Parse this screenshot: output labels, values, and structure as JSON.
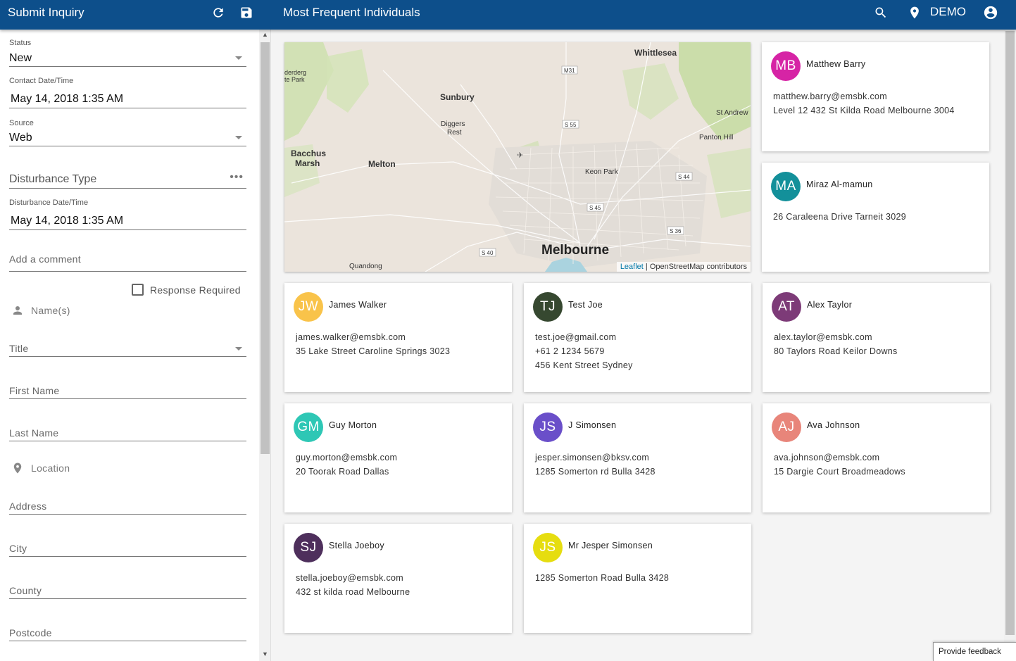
{
  "topbar": {
    "left_title": "Submit Inquiry",
    "right_title": "Most Frequent Individuals",
    "user_label": "DEMO"
  },
  "form": {
    "status": {
      "label": "Status",
      "value": "New"
    },
    "contact_datetime": {
      "label": "Contact Date/Time",
      "value": "May 14, 2018 1:35 AM"
    },
    "source": {
      "label": "Source",
      "value": "Web"
    },
    "disturbance_type": {
      "placeholder": "Disturbance Type"
    },
    "disturbance_datetime": {
      "label": "Disturbance Date/Time",
      "value": "May 14, 2018 1:35 AM"
    },
    "comment": {
      "placeholder": "Add a comment"
    },
    "response_required": {
      "label": "Response Required",
      "checked": false
    },
    "names_section": "Name(s)",
    "title": {
      "placeholder": "Title"
    },
    "first_name": {
      "placeholder": "First Name"
    },
    "last_name": {
      "placeholder": "Last Name"
    },
    "location_section": "Location",
    "address": {
      "placeholder": "Address"
    },
    "city": {
      "placeholder": "City"
    },
    "county": {
      "placeholder": "County"
    },
    "postcode": {
      "placeholder": "Postcode"
    }
  },
  "map": {
    "places": {
      "whittlesea": "Whittlesea",
      "sunbury": "Sunbury",
      "st_andrews": "St Andrew",
      "diggers": "Diggers",
      "rest": "Rest",
      "panton_hill": "Panton Hill",
      "bacchus": "Bacchus",
      "marsh": "Marsh",
      "melton": "Melton",
      "keon_park": "Keon Park",
      "melbourne": "Melbourne",
      "quandong": "Quandong",
      "derderg": "derderg",
      "te_park": "te Park"
    },
    "roads": {
      "m31": "M31",
      "s55": "S 55",
      "s44": "S 44",
      "s45": "S 45",
      "s36": "S 36",
      "s40": "S 40"
    },
    "attribution_link": "Leaflet",
    "attribution_text": " | OpenStreetMap contributors"
  },
  "cards": [
    {
      "initials": "MB",
      "color": "#d624a5",
      "name": "Matthew Barry",
      "lines": [
        "matthew.barry@emsbk.com",
        "Level 12 432 St Kilda Road Melbourne 3004"
      ]
    },
    {
      "initials": "MA",
      "color": "#13909a",
      "name": "Miraz Al-mamun",
      "lines": [
        "26 Caraleena Drive Tarneit 3029"
      ]
    },
    {
      "initials": "JW",
      "color": "#f9c34a",
      "name": "James Walker",
      "lines": [
        "james.walker@emsbk.com",
        "35 Lake Street Caroline Springs 3023"
      ]
    },
    {
      "initials": "TJ",
      "color": "#364830",
      "name": "Test Joe",
      "lines": [
        "test.joe@gmail.com",
        "+61 2 1234 5679",
        "456 Kent Street Sydney"
      ]
    },
    {
      "initials": "AT",
      "color": "#7d3b78",
      "name": "Alex Taylor",
      "lines": [
        "alex.taylor@emsbk.com",
        "80 Taylors Road Keilor Downs"
      ]
    },
    {
      "initials": "GM",
      "color": "#2ec7b5",
      "name": "Guy Morton",
      "lines": [
        "guy.morton@emsbk.com",
        "20 Toorak Road Dallas"
      ]
    },
    {
      "initials": "JS",
      "color": "#6a4fc9",
      "name": "J Simonsen",
      "lines": [
        "jesper.simonsen@bksv.com",
        "1285 Somerton rd Bulla 3428"
      ]
    },
    {
      "initials": "AJ",
      "color": "#e8857a",
      "name": "Ava Johnson",
      "lines": [
        "ava.johnson@emsbk.com",
        "15 Dargie Court Broadmeadows"
      ]
    },
    {
      "initials": "SJ",
      "color": "#4e2f5c",
      "name": "Stella Joeboy",
      "lines": [
        "stella.joeboy@emsbk.com",
        "432 st kilda road Melbourne"
      ]
    },
    {
      "initials": "JS",
      "color": "#e6dd10",
      "name": "Mr Jesper Simonsen",
      "lines": [
        "1285 Somerton Road Bulla 3428"
      ]
    }
  ],
  "feedback_label": "Provide feedback"
}
